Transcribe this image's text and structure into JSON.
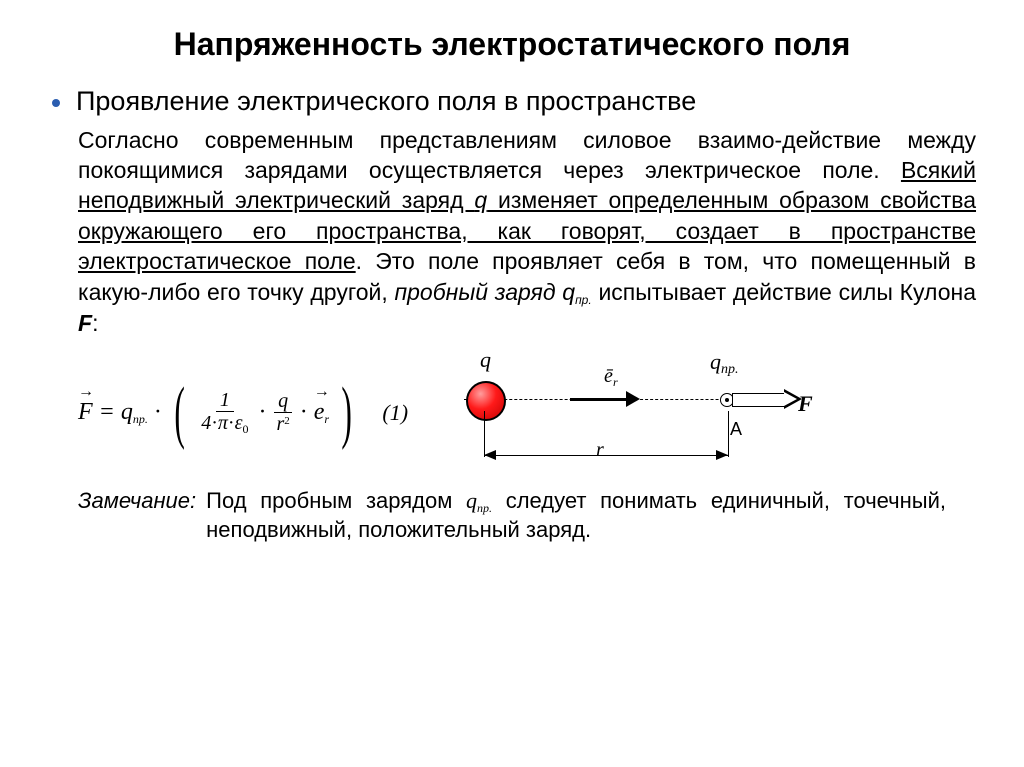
{
  "title": "Напряженность электростатического поля",
  "bullet": "Проявление электрического поля в пространстве",
  "p": {
    "a": "Согласно современным представлениям силовое взаимо-действие между покоящимися зарядами осуществляется через электрическое поле. ",
    "u1": "Всякий неподвижный электрический заряд ",
    "u_q": "q",
    "u2": " изменяет определенным образом свойства окружающего его пространства, как говорят, создает в пространстве электростатическое поле",
    "b": ". Это поле проявляет себя в том, что помещенный в какую-либо его точку другой, ",
    "it": "пробный заряд q",
    "sub_pr": "пр.",
    "c": " испытывает действие силы Кулона ",
    "F": "F",
    "end": ":"
  },
  "formula": {
    "F": "F",
    "eq": "=",
    "q": "q",
    "pr": "пр.",
    "dot": "·",
    "one": "1",
    "four": "4",
    "pi": "π",
    "eps": "ε",
    "z": "0",
    "r": "r",
    "two": "2",
    "e": "e",
    "rsub": "r",
    "num": "(1)"
  },
  "diagram": {
    "q": "q",
    "er": "ē",
    "ersub": "r",
    "qpr": "q",
    "qprsub": "пр.",
    "F": "F",
    "A": "A",
    "r": "r"
  },
  "note": {
    "lead": "Замечание:",
    "a": "Под пробным зарядом ",
    "q": "q",
    "sub": "пр.",
    "b": " следует понимать единичный, точечный, неподвижный, положительный заряд."
  },
  "colors": {
    "bullet": "#2a5db0",
    "charge": "#ff1a1a"
  }
}
